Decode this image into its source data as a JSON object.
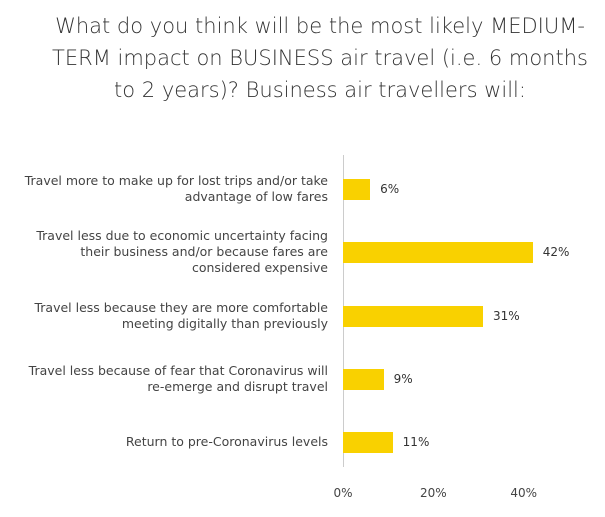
{
  "chart_data": {
    "type": "bar",
    "orientation": "horizontal",
    "title": "What do you think will be the most likely MEDIUM-TERM impact on BUSINESS air travel (i.e. 6 months to 2 years)? Business air travellers will:",
    "categories": [
      "Travel more to make up for lost trips and/or take advantage of low fares",
      "Travel less due to economic uncertainty facing their business and/or because fares are considered expensive",
      "Travel less because they are more comfortable meeting digitally than previously",
      "Travel less because of fear that Coronavirus will re-emerge and disrupt travel",
      "Return to pre-Coronavirus levels"
    ],
    "values": [
      6,
      42,
      31,
      9,
      11
    ],
    "value_labels": [
      "6%",
      "42%",
      "31%",
      "9%",
      "11%"
    ],
    "color": "#f9d100",
    "xlim": [
      0,
      60
    ],
    "xticks": [
      {
        "value": 0,
        "label": "0%"
      },
      {
        "value": 20,
        "label": "20%"
      },
      {
        "value": 40,
        "label": "40%"
      }
    ]
  }
}
